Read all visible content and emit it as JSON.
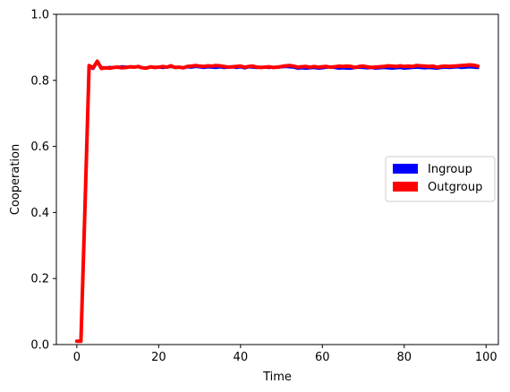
{
  "chart_data": {
    "type": "line",
    "xlabel": "Time",
    "ylabel": "Cooperation",
    "xlim": [
      -5,
      103
    ],
    "ylim": [
      0,
      1
    ],
    "xticks": [
      0,
      20,
      40,
      60,
      80,
      100
    ],
    "yticks": [
      0.0,
      0.2,
      0.4,
      0.6,
      0.8,
      1.0
    ],
    "xtick_labels": [
      "0",
      "20",
      "40",
      "60",
      "80",
      "100"
    ],
    "ytick_labels": [
      "0.0",
      "0.2",
      "0.4",
      "0.6",
      "0.8",
      "1.0"
    ],
    "grid": false,
    "legend_placement": "center-right",
    "x": [
      0,
      1,
      2,
      3,
      4,
      5,
      6,
      7,
      8,
      9,
      10,
      11,
      12,
      13,
      14,
      15,
      16,
      17,
      18,
      19,
      20,
      21,
      22,
      23,
      24,
      25,
      26,
      27,
      28,
      29,
      30,
      31,
      32,
      33,
      34,
      35,
      36,
      37,
      38,
      39,
      40,
      41,
      42,
      43,
      44,
      45,
      46,
      47,
      48,
      49,
      50,
      51,
      52,
      53,
      54,
      55,
      56,
      57,
      58,
      59,
      60,
      61,
      62,
      63,
      64,
      65,
      66,
      67,
      68,
      69,
      70,
      71,
      72,
      73,
      74,
      75,
      76,
      77,
      78,
      79,
      80,
      81,
      82,
      83,
      84,
      85,
      86,
      87,
      88,
      89,
      90,
      91,
      92,
      93,
      94,
      95,
      96,
      97,
      98
    ],
    "series": [
      {
        "name": "Ingroup",
        "color": "#0000ff",
        "values": [
          0.01,
          0.01,
          0.42,
          0.84,
          0.835,
          0.855,
          0.84,
          0.838,
          0.84,
          0.839,
          0.84,
          0.842,
          0.841,
          0.84,
          0.842,
          0.84,
          0.839,
          0.838,
          0.84,
          0.839,
          0.84,
          0.838,
          0.84,
          0.841,
          0.839,
          0.84,
          0.838,
          0.84,
          0.839,
          0.841,
          0.84,
          0.838,
          0.84,
          0.839,
          0.838,
          0.84,
          0.838,
          0.839,
          0.84,
          0.838,
          0.84,
          0.837,
          0.84,
          0.839,
          0.838,
          0.84,
          0.839,
          0.838,
          0.84,
          0.839,
          0.84,
          0.841,
          0.84,
          0.839,
          0.836,
          0.837,
          0.836,
          0.837,
          0.838,
          0.836,
          0.837,
          0.839,
          0.84,
          0.838,
          0.836,
          0.837,
          0.836,
          0.836,
          0.838,
          0.839,
          0.838,
          0.837,
          0.838,
          0.836,
          0.837,
          0.838,
          0.837,
          0.836,
          0.837,
          0.838,
          0.836,
          0.837,
          0.838,
          0.839,
          0.838,
          0.837,
          0.838,
          0.837,
          0.836,
          0.838,
          0.839,
          0.838,
          0.839,
          0.84,
          0.838,
          0.839,
          0.84,
          0.839,
          0.838
        ]
      },
      {
        "name": "Outgroup",
        "color": "#ff0000",
        "values": [
          0.01,
          0.01,
          0.42,
          0.845,
          0.838,
          0.858,
          0.836,
          0.838,
          0.837,
          0.839,
          0.84,
          0.838,
          0.839,
          0.841,
          0.84,
          0.842,
          0.838,
          0.837,
          0.841,
          0.839,
          0.84,
          0.842,
          0.84,
          0.844,
          0.839,
          0.84,
          0.838,
          0.842,
          0.843,
          0.845,
          0.843,
          0.842,
          0.844,
          0.843,
          0.845,
          0.844,
          0.842,
          0.84,
          0.841,
          0.842,
          0.843,
          0.84,
          0.842,
          0.843,
          0.84,
          0.839,
          0.84,
          0.841,
          0.839,
          0.84,
          0.842,
          0.844,
          0.845,
          0.843,
          0.84,
          0.841,
          0.842,
          0.84,
          0.842,
          0.84,
          0.841,
          0.842,
          0.84,
          0.841,
          0.843,
          0.842,
          0.843,
          0.842,
          0.839,
          0.842,
          0.843,
          0.841,
          0.839,
          0.84,
          0.841,
          0.842,
          0.844,
          0.843,
          0.842,
          0.844,
          0.842,
          0.843,
          0.842,
          0.845,
          0.844,
          0.843,
          0.842,
          0.843,
          0.84,
          0.842,
          0.843,
          0.842,
          0.843,
          0.844,
          0.845,
          0.846,
          0.847,
          0.846,
          0.843
        ]
      }
    ]
  }
}
